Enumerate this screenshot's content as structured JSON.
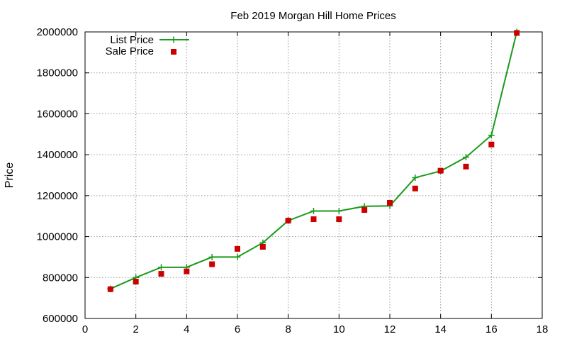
{
  "chart_data": {
    "type": "line",
    "title": "Feb 2019 Morgan Hill Home Prices",
    "xlabel": "",
    "ylabel": "Price",
    "xlim": [
      0,
      18
    ],
    "ylim": [
      600000,
      2000000
    ],
    "x_ticks": [
      0,
      2,
      4,
      6,
      8,
      10,
      12,
      14,
      16,
      18
    ],
    "y_ticks": [
      600000,
      800000,
      1000000,
      1200000,
      1400000,
      1600000,
      1800000,
      2000000
    ],
    "x_tick_labels": [
      "0",
      "2",
      "4",
      "6",
      "8",
      "10",
      "12",
      "14",
      "16",
      "18"
    ],
    "y_tick_labels": [
      "600000",
      "800000",
      "1000000",
      "1200000",
      "1400000",
      "1600000",
      "1800000",
      "2000000"
    ],
    "grid": true,
    "legend_position": "top-left",
    "x": [
      1,
      2,
      3,
      4,
      5,
      6,
      7,
      8,
      9,
      10,
      11,
      12,
      13,
      14,
      15,
      16,
      17
    ],
    "series": [
      {
        "name": "List Price",
        "kind": "line-with-plus-markers",
        "color": "#1a9a1a",
        "values": [
          745000,
          800000,
          850000,
          850000,
          900000,
          900000,
          970000,
          1078000,
          1125000,
          1125000,
          1148000,
          1150000,
          1288000,
          1320000,
          1388000,
          1495000,
          2000000
        ]
      },
      {
        "name": "Sale Price",
        "kind": "square-markers",
        "color": "#cc0000",
        "values": [
          743000,
          780000,
          818000,
          830000,
          865000,
          940000,
          950000,
          1078000,
          1085000,
          1085000,
          1130000,
          1165000,
          1235000,
          1322000,
          1342000,
          1450000,
          1995000
        ]
      }
    ]
  }
}
